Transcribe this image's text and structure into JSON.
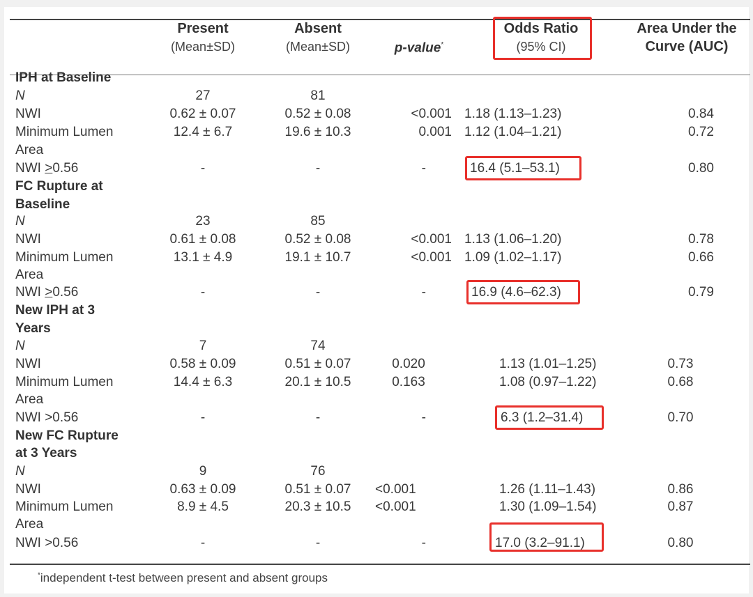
{
  "headers": {
    "present": [
      "Present",
      "(Mean±SD)"
    ],
    "absent": [
      "Absent",
      "(Mean±SD)"
    ],
    "pvalue": "p-value",
    "pvalue_mark": "*",
    "odds": [
      "Odds Ratio",
      "(95% CI)"
    ],
    "auc": [
      "Area Under the",
      "Curve (AUC)"
    ]
  },
  "sections": {
    "s1": [
      "IPH at Baseline"
    ],
    "s2": [
      "FC Rupture at",
      "Baseline"
    ],
    "s3": [
      "New IPH at 3",
      "Years"
    ],
    "s4": [
      "New FC Rupture",
      "at 3 Years"
    ]
  },
  "rows": {
    "s1": [
      {
        "label": "N",
        "present": "27",
        "absent": "81"
      },
      {
        "label": "NWI",
        "present": "0.62 ± 0.07",
        "absent": "0.52 ± 0.08",
        "p": "<0.001",
        "or": "1.18 (1.13–1.23)",
        "auc": "0.84"
      },
      {
        "label": "Minimum Lumen",
        "label2": "Area",
        "present": "12.4 ± 6.7",
        "absent": "19.6 ± 10.3",
        "p": "0.001",
        "or": "1.12 (1.04–1.21)",
        "auc": "0.72"
      },
      {
        "label_a": "NWI ",
        "label_u": ">",
        "label_b": "0.56",
        "present": "-",
        "absent": "-",
        "p": "-",
        "or": "16.4 (5.1–53.1)",
        "auc": "0.80"
      }
    ],
    "s2": [
      {
        "label": "N",
        "present": "23",
        "absent": "85"
      },
      {
        "label": "NWI",
        "present": "0.61 ± 0.08",
        "absent": "0.52 ± 0.08",
        "p": "<0.001",
        "or": "1.13 (1.06–1.20)",
        "auc": "0.78"
      },
      {
        "label": "Minimum Lumen",
        "label2": "Area",
        "present": "13.1 ± 4.9",
        "absent": "19.1 ± 10.7",
        "p": "<0.001",
        "or": "1.09 (1.02–1.17)",
        "auc": "0.66"
      },
      {
        "label_a": "NWI ",
        "label_u": ">",
        "label_b": "0.56",
        "present": "-",
        "absent": "-",
        "p": "-",
        "or": "16.9 (4.6–62.3)",
        "auc": "0.79"
      }
    ],
    "s3": [
      {
        "label": "N",
        "present": "7",
        "absent": "74"
      },
      {
        "label": "NWI",
        "present": "0.58 ± 0.09",
        "absent": "0.51 ± 0.07",
        "p": "0.020",
        "or": "1.13 (1.01–1.25)",
        "auc": "0.73"
      },
      {
        "label": "Minimum Lumen",
        "label2": "Area",
        "present": "14.4 ± 6.3",
        "absent": "20.1 ± 10.5",
        "p": "0.163",
        "or": "1.08 (0.97–1.22)",
        "auc": "0.68"
      },
      {
        "label": "NWI >0.56",
        "present": "-",
        "absent": "-",
        "p": "-",
        "or": "6.3 (1.2–31.4)",
        "auc": "0.70"
      }
    ],
    "s4": [
      {
        "label": "N",
        "present": "9",
        "absent": "76"
      },
      {
        "label": "NWI",
        "present": "0.63 ± 0.09",
        "absent": "0.51 ± 0.07",
        "p": "<0.001",
        "or": "1.26 (1.11–1.43)",
        "auc": "0.86"
      },
      {
        "label": "Minimum Lumen",
        "label2": "Area",
        "present": "8.9 ± 4.5",
        "absent": "20.3 ± 10.5",
        "p": "<0.001",
        "or": "1.30 (1.09–1.54)",
        "auc": "0.87"
      },
      {
        "label": "NWI >0.56",
        "present": "-",
        "absent": "-",
        "p": "-",
        "or": "17.0 (3.2–91.1)",
        "auc": "0.80"
      }
    ]
  },
  "footnote_mark": "*",
  "footnote": "independent t-test between present and absent groups",
  "highlight_color": "#e8302b"
}
